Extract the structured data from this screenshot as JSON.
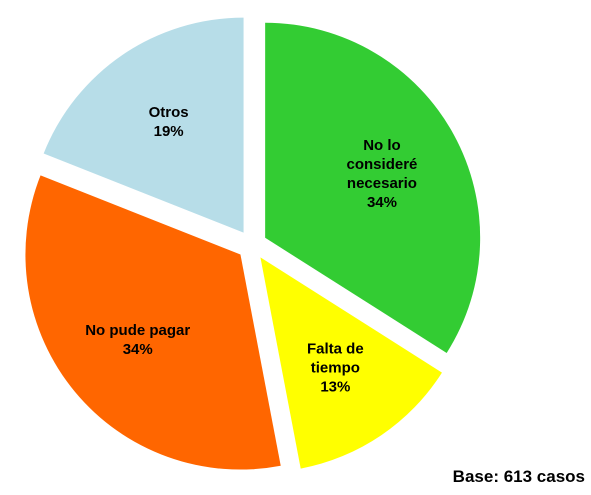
{
  "chart_data": {
    "type": "pie",
    "categories": [
      "No lo consideré necesario",
      "Falta de tiempo",
      "No pude pagar",
      "Otros"
    ],
    "values": [
      34,
      13,
      34,
      19
    ],
    "value_labels": [
      "34%",
      "13%",
      "34%",
      "19%"
    ],
    "colors": [
      "#33cc33",
      "#ffff00",
      "#ff6600",
      "#b7dde8"
    ],
    "annotation": "Base: 613 casos"
  }
}
